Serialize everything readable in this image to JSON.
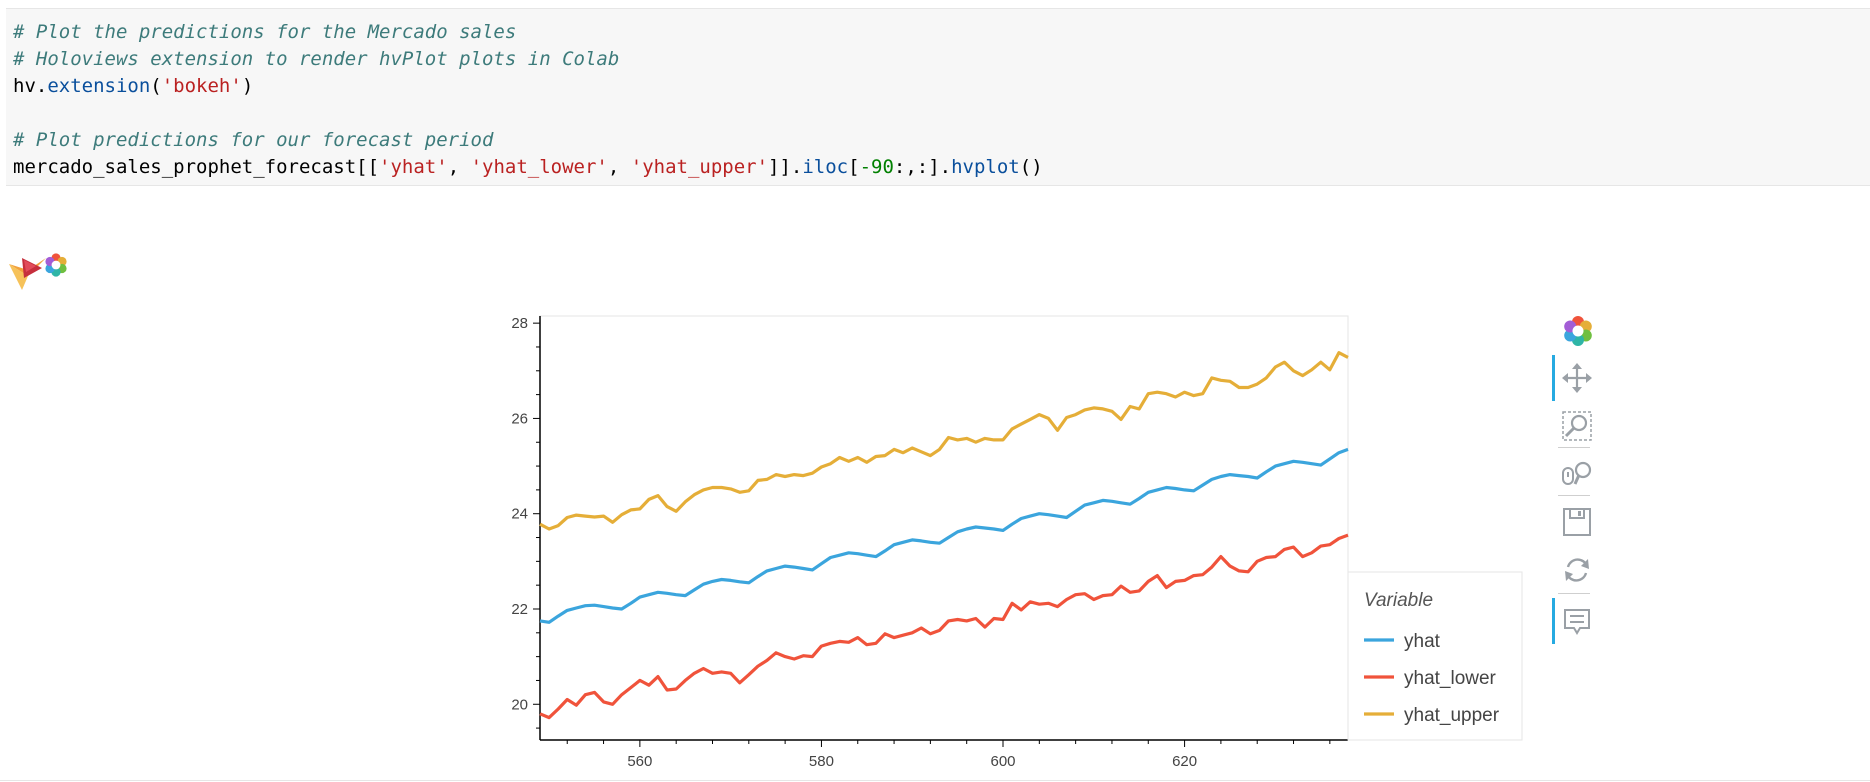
{
  "code": {
    "line1": "# Plot the predictions for the Mercado sales",
    "line2": "# Holoviews extension to render hvPlot plots in Colab",
    "line3": {
      "obj": "hv.",
      "method": "extension",
      "open": "(",
      "arg": "'bokeh'",
      "close": ")"
    },
    "line5": "# Plot predictions for our forecast period",
    "line6": {
      "var": "mercado_sales_prophet_forecast[[",
      "s1": "'yhat'",
      "c1": ", ",
      "s2": "'yhat_lower'",
      "c2": ", ",
      "s3": "'yhat_upper'",
      "mid": "]].",
      "iloc": "iloc",
      "br": "[",
      "num": "-90",
      "rest": ":,:].",
      "hvplot": "hvplot",
      "end": "()"
    }
  },
  "toolbar": {
    "tools": [
      "bokeh-logo-icon",
      "pan-tool-icon",
      "box-zoom-tool-icon",
      "wheel-zoom-tool-icon",
      "save-tool-icon",
      "reset-tool-icon",
      "hover-tool-icon"
    ]
  },
  "colors": {
    "yhat": "#3ba5dd",
    "yhat_lower": "#f0533b",
    "yhat_upper": "#e5ae38"
  },
  "chart_data": {
    "type": "line",
    "title": "",
    "xlabel": "",
    "ylabel": "",
    "xlim": [
      549,
      638
    ],
    "ylim": [
      19.25,
      28.15
    ],
    "xticks": [
      560,
      580,
      600,
      620
    ],
    "yticks": [
      20,
      22,
      24,
      26,
      28
    ],
    "grid": false,
    "legend": {
      "title": "Variable",
      "position": "right"
    },
    "x_start": 549,
    "series": [
      {
        "name": "yhat",
        "color": "#3ba5dd",
        "values": [
          21.75,
          21.72,
          21.85,
          21.97,
          22.02,
          22.07,
          22.08,
          22.05,
          22.02,
          22.0,
          22.12,
          22.25,
          22.3,
          22.35,
          22.33,
          22.3,
          22.28,
          22.4,
          22.52,
          22.58,
          22.62,
          22.6,
          22.57,
          22.55,
          22.68,
          22.8,
          22.85,
          22.9,
          22.88,
          22.85,
          22.82,
          22.95,
          23.08,
          23.13,
          23.18,
          23.16,
          23.13,
          23.1,
          23.22,
          23.35,
          23.4,
          23.45,
          23.43,
          23.4,
          23.38,
          23.5,
          23.62,
          23.68,
          23.72,
          23.7,
          23.68,
          23.65,
          23.78,
          23.9,
          23.95,
          24.0,
          23.98,
          23.95,
          23.92,
          24.05,
          24.18,
          24.23,
          24.28,
          24.26,
          24.23,
          24.2,
          24.32,
          24.45,
          24.5,
          24.55,
          24.53,
          24.5,
          24.48,
          24.6,
          24.72,
          24.78,
          24.82,
          24.8,
          24.78,
          24.75,
          24.88,
          25.0,
          25.05,
          25.1,
          25.08,
          25.05,
          25.02,
          25.15,
          25.28,
          25.35
        ]
      },
      {
        "name": "yhat_lower",
        "color": "#f0533b",
        "values": [
          19.8,
          19.72,
          19.9,
          20.1,
          19.98,
          20.2,
          20.25,
          20.05,
          20.0,
          20.2,
          20.35,
          20.5,
          20.4,
          20.58,
          20.3,
          20.32,
          20.5,
          20.65,
          20.75,
          20.65,
          20.68,
          20.65,
          20.45,
          20.62,
          20.8,
          20.92,
          21.08,
          21.0,
          20.95,
          21.02,
          21.0,
          21.22,
          21.28,
          21.32,
          21.3,
          21.4,
          21.25,
          21.28,
          21.48,
          21.4,
          21.45,
          21.5,
          21.6,
          21.48,
          21.55,
          21.75,
          21.78,
          21.75,
          21.8,
          21.62,
          21.8,
          21.78,
          22.12,
          21.98,
          22.15,
          22.1,
          22.12,
          22.05,
          22.2,
          22.3,
          22.32,
          22.2,
          22.28,
          22.3,
          22.48,
          22.35,
          22.38,
          22.58,
          22.7,
          22.45,
          22.58,
          22.6,
          22.7,
          22.72,
          22.88,
          23.1,
          22.9,
          22.8,
          22.78,
          23.0,
          23.08,
          23.1,
          23.25,
          23.3,
          23.1,
          23.18,
          23.32,
          23.35,
          23.48,
          23.55
        ]
      },
      {
        "name": "yhat_upper",
        "color": "#e5ae38",
        "values": [
          23.78,
          23.68,
          23.75,
          23.92,
          23.97,
          23.95,
          23.93,
          23.95,
          23.82,
          23.98,
          24.08,
          24.1,
          24.3,
          24.38,
          24.15,
          24.05,
          24.25,
          24.4,
          24.5,
          24.55,
          24.55,
          24.52,
          24.45,
          24.48,
          24.7,
          24.72,
          24.82,
          24.78,
          24.82,
          24.8,
          24.85,
          24.98,
          25.05,
          25.18,
          25.1,
          25.18,
          25.08,
          25.2,
          25.22,
          25.35,
          25.28,
          25.38,
          25.3,
          25.22,
          25.35,
          25.6,
          25.55,
          25.58,
          25.5,
          25.58,
          25.55,
          25.55,
          25.78,
          25.88,
          25.98,
          26.08,
          26.0,
          25.75,
          26.02,
          26.08,
          26.18,
          26.22,
          26.2,
          26.15,
          25.98,
          26.25,
          26.2,
          26.52,
          26.55,
          26.52,
          26.45,
          26.55,
          26.48,
          26.52,
          26.85,
          26.8,
          26.78,
          26.65,
          26.65,
          26.72,
          26.85,
          27.08,
          27.18,
          27.0,
          26.9,
          27.02,
          27.18,
          27.02,
          27.38,
          27.28
        ]
      }
    ]
  }
}
